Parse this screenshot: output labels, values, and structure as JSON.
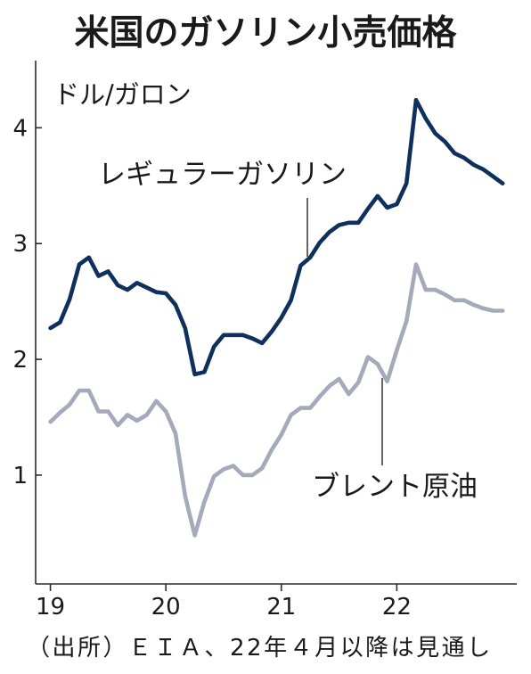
{
  "chart_data": {
    "type": "line",
    "title": "米国のガソリン小売価格",
    "ylabel": "ドル/ガロン",
    "ylim": [
      0.06,
      4.58
    ],
    "xlim": [
      "2018-11-15",
      "2023-01-15"
    ],
    "y_ticks": [
      1,
      2,
      3,
      4
    ],
    "x_ticks": [
      {
        "label": "19",
        "at": "2019-01"
      },
      {
        "label": "20",
        "at": "2020-01"
      },
      {
        "label": "21",
        "at": "2021-01"
      },
      {
        "label": "22",
        "at": "2022-01"
      }
    ],
    "grid": false,
    "legend": "none",
    "x": [
      "2019-01",
      "2019-02",
      "2019-03",
      "2019-04",
      "2019-05",
      "2019-06",
      "2019-07",
      "2019-08",
      "2019-09",
      "2019-10",
      "2019-11",
      "2019-12",
      "2020-01",
      "2020-02",
      "2020-03",
      "2020-04",
      "2020-05",
      "2020-06",
      "2020-07",
      "2020-08",
      "2020-09",
      "2020-10",
      "2020-11",
      "2020-12",
      "2021-01",
      "2021-02",
      "2021-03",
      "2021-04",
      "2021-05",
      "2021-06",
      "2021-07",
      "2021-08",
      "2021-09",
      "2021-10",
      "2021-11",
      "2021-12",
      "2022-01",
      "2022-02",
      "2022-03",
      "2022-04",
      "2022-05",
      "2022-06",
      "2022-07",
      "2022-08",
      "2022-09",
      "2022-10",
      "2022-11",
      "2022-12"
    ],
    "series": [
      {
        "name": "レギュラーガソリン",
        "color": "#0e305c",
        "values": [
          2.27,
          2.32,
          2.52,
          2.82,
          2.88,
          2.72,
          2.76,
          2.64,
          2.6,
          2.66,
          2.62,
          2.58,
          2.57,
          2.47,
          2.27,
          1.87,
          1.89,
          2.11,
          2.21,
          2.21,
          2.21,
          2.18,
          2.14,
          2.24,
          2.36,
          2.51,
          2.81,
          2.88,
          3.01,
          3.1,
          3.16,
          3.18,
          3.18,
          3.3,
          3.41,
          3.31,
          3.34,
          3.52,
          4.24,
          4.08,
          3.95,
          3.88,
          3.78,
          3.74,
          3.68,
          3.64,
          3.58,
          3.52
        ]
      },
      {
        "name": "ブレント原油",
        "color": "#a5aabb",
        "values": [
          1.46,
          1.54,
          1.61,
          1.73,
          1.73,
          1.55,
          1.55,
          1.43,
          1.52,
          1.47,
          1.52,
          1.64,
          1.55,
          1.36,
          0.82,
          0.48,
          0.77,
          0.99,
          1.05,
          1.08,
          1.0,
          1.0,
          1.06,
          1.22,
          1.35,
          1.52,
          1.58,
          1.58,
          1.68,
          1.77,
          1.83,
          1.7,
          1.8,
          2.02,
          1.96,
          1.81,
          2.08,
          2.33,
          2.82,
          2.6,
          2.6,
          2.56,
          2.51,
          2.51,
          2.47,
          2.44,
          2.42,
          2.42
        ]
      }
    ],
    "source_note": "（出所）ＥＩＡ、22年４月以降は見通し"
  }
}
